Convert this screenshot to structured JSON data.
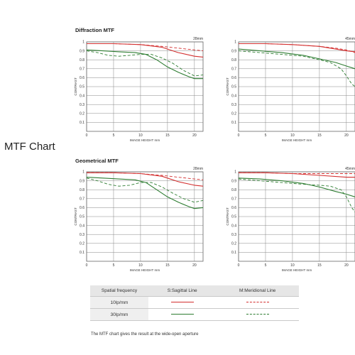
{
  "side_title": "MTF Chart",
  "sections": [
    "Diffraction MTF",
    "Geometrical MTF"
  ],
  "colors": {
    "sagittal_30": "#2e7d32",
    "sagittal_10": "#d32f2f",
    "meridional_30": "#2e7d32",
    "meridional_10": "#d32f2f"
  },
  "chart_data": [
    {
      "type": "line",
      "section": "Diffraction MTF",
      "focal": "28mm",
      "xlabel": "IMAGE HEIGHT   mm",
      "ylabel": "CONTRAST",
      "xlim": [
        0,
        21.6
      ],
      "ylim": [
        0,
        1
      ],
      "xticks": [
        0,
        5,
        10,
        15,
        20
      ],
      "yticks": [
        0.1,
        0.2,
        0.3,
        0.4,
        0.5,
        0.6,
        0.7,
        0.8,
        0.9,
        1
      ],
      "series": [
        {
          "name": "10lp/mm S",
          "style": "solid",
          "color": "#d32f2f",
          "x": [
            0,
            5,
            10,
            14,
            17,
            20,
            21.6
          ],
          "y": [
            0.98,
            0.98,
            0.97,
            0.94,
            0.88,
            0.84,
            0.83
          ]
        },
        {
          "name": "10lp/mm M",
          "style": "dashed",
          "color": "#d32f2f",
          "x": [
            0,
            5,
            10,
            14,
            17,
            20,
            21.6
          ],
          "y": [
            0.98,
            0.98,
            0.97,
            0.95,
            0.93,
            0.91,
            0.9
          ]
        },
        {
          "name": "30lp/mm S",
          "style": "solid",
          "color": "#2e7d32",
          "x": [
            0,
            3,
            6,
            9,
            11,
            13,
            15,
            17,
            19,
            20,
            21.6
          ],
          "y": [
            0.91,
            0.9,
            0.89,
            0.88,
            0.86,
            0.8,
            0.72,
            0.66,
            0.61,
            0.59,
            0.59
          ]
        },
        {
          "name": "30lp/mm M",
          "style": "dashed",
          "color": "#2e7d32",
          "x": [
            0,
            2,
            4,
            6,
            8,
            10,
            12,
            14,
            16,
            18,
            20,
            21.6
          ],
          "y": [
            0.9,
            0.88,
            0.85,
            0.84,
            0.85,
            0.86,
            0.86,
            0.82,
            0.76,
            0.68,
            0.62,
            0.63
          ]
        }
      ]
    },
    {
      "type": "line",
      "section": "Diffraction MTF",
      "focal": "45mm",
      "xlabel": "IMAGE HEIGHT   mm",
      "ylabel": "CONTRAST",
      "xlim": [
        0,
        21.6
      ],
      "ylim": [
        0,
        1
      ],
      "xticks": [
        0,
        5,
        10,
        15,
        20
      ],
      "yticks": [
        0.1,
        0.2,
        0.3,
        0.4,
        0.5,
        0.6,
        0.7,
        0.8,
        0.9,
        1
      ],
      "series": [
        {
          "name": "10lp/mm S",
          "style": "solid",
          "color": "#d32f2f",
          "x": [
            0,
            5,
            10,
            15,
            20,
            21.6
          ],
          "y": [
            0.98,
            0.98,
            0.97,
            0.95,
            0.9,
            0.89
          ]
        },
        {
          "name": "10lp/mm M",
          "style": "dashed",
          "color": "#d32f2f",
          "x": [
            0,
            5,
            10,
            15,
            18,
            20,
            21.6
          ],
          "y": [
            0.98,
            0.98,
            0.97,
            0.95,
            0.93,
            0.91,
            0.88
          ]
        },
        {
          "name": "30lp/mm S",
          "style": "solid",
          "color": "#2e7d32",
          "x": [
            0,
            4,
            8,
            12,
            15,
            18,
            20,
            21.6
          ],
          "y": [
            0.92,
            0.9,
            0.88,
            0.85,
            0.81,
            0.77,
            0.73,
            0.7
          ]
        },
        {
          "name": "30lp/mm M",
          "style": "dashed",
          "color": "#2e7d32",
          "x": [
            0,
            4,
            8,
            12,
            15,
            17,
            19,
            20,
            21,
            21.6
          ],
          "y": [
            0.9,
            0.88,
            0.86,
            0.84,
            0.8,
            0.77,
            0.7,
            0.62,
            0.53,
            0.5
          ]
        }
      ]
    },
    {
      "type": "line",
      "section": "Geometrical MTF",
      "focal": "28mm",
      "xlabel": "IMAGE HEIGHT   mm",
      "ylabel": "CONTRAST",
      "xlim": [
        0,
        21.6
      ],
      "ylim": [
        0,
        1
      ],
      "xticks": [
        0,
        5,
        10,
        15,
        20
      ],
      "yticks": [
        0.1,
        0.2,
        0.3,
        0.4,
        0.5,
        0.6,
        0.7,
        0.8,
        0.9,
        1
      ],
      "series": [
        {
          "name": "10lp/mm S",
          "style": "solid",
          "color": "#d32f2f",
          "x": [
            0,
            5,
            10,
            14,
            17,
            20,
            21.6
          ],
          "y": [
            0.99,
            0.99,
            0.98,
            0.95,
            0.89,
            0.85,
            0.84
          ]
        },
        {
          "name": "10lp/mm M",
          "style": "dashed",
          "color": "#d32f2f",
          "x": [
            0,
            5,
            10,
            14,
            17,
            20,
            21.6
          ],
          "y": [
            0.99,
            0.99,
            0.98,
            0.96,
            0.94,
            0.92,
            0.91
          ]
        },
        {
          "name": "30lp/mm S",
          "style": "solid",
          "color": "#2e7d32",
          "x": [
            0,
            3,
            6,
            9,
            11,
            13,
            15,
            17,
            19,
            20,
            21.6
          ],
          "y": [
            0.94,
            0.93,
            0.92,
            0.91,
            0.88,
            0.8,
            0.72,
            0.66,
            0.61,
            0.59,
            0.6
          ]
        },
        {
          "name": "30lp/mm M",
          "style": "dashed",
          "color": "#2e7d32",
          "x": [
            0,
            2,
            4,
            6,
            8,
            10,
            12,
            14,
            16,
            18,
            20,
            21.6
          ],
          "y": [
            0.93,
            0.9,
            0.86,
            0.84,
            0.85,
            0.88,
            0.88,
            0.83,
            0.76,
            0.7,
            0.66,
            0.68
          ]
        }
      ]
    },
    {
      "type": "line",
      "section": "Geometrical MTF",
      "focal": "45mm",
      "xlabel": "IMAGE HEIGHT   mm",
      "ylabel": "CONTRAST",
      "xlim": [
        0,
        21.6
      ],
      "ylim": [
        0,
        1
      ],
      "xticks": [
        0,
        5,
        10,
        15,
        20
      ],
      "yticks": [
        0.1,
        0.2,
        0.3,
        0.4,
        0.5,
        0.6,
        0.7,
        0.8,
        0.9,
        1
      ],
      "series": [
        {
          "name": "10lp/mm S",
          "style": "solid",
          "color": "#d32f2f",
          "x": [
            0,
            5,
            10,
            15,
            20,
            21.6
          ],
          "y": [
            0.99,
            0.99,
            0.98,
            0.96,
            0.94,
            0.94
          ]
        },
        {
          "name": "10lp/mm M",
          "style": "dashed",
          "color": "#d32f2f",
          "x": [
            0,
            5,
            10,
            15,
            20,
            21.6
          ],
          "y": [
            0.99,
            0.99,
            0.98,
            0.98,
            0.98,
            0.98
          ]
        },
        {
          "name": "30lp/mm S",
          "style": "solid",
          "color": "#2e7d32",
          "x": [
            0,
            4,
            8,
            12,
            15,
            18,
            20,
            21.6
          ],
          "y": [
            0.93,
            0.92,
            0.9,
            0.87,
            0.83,
            0.78,
            0.75,
            0.72
          ]
        },
        {
          "name": "30lp/mm M",
          "style": "dashed",
          "color": "#2e7d32",
          "x": [
            0,
            4,
            8,
            12,
            15,
            17,
            19,
            20,
            21,
            21.6
          ],
          "y": [
            0.92,
            0.9,
            0.88,
            0.86,
            0.85,
            0.84,
            0.8,
            0.72,
            0.6,
            0.55
          ]
        }
      ]
    }
  ],
  "legend": {
    "headers": [
      "Spatial frequency",
      "S:Sagittal Line",
      "M:Meridional Line"
    ],
    "rows": [
      {
        "label": "10lp/mm",
        "color": "#d32f2f"
      },
      {
        "label": "30lp/mm",
        "color": "#2e7d32"
      }
    ]
  },
  "note": "The MTF chart gives the result at the wide-open aperture"
}
